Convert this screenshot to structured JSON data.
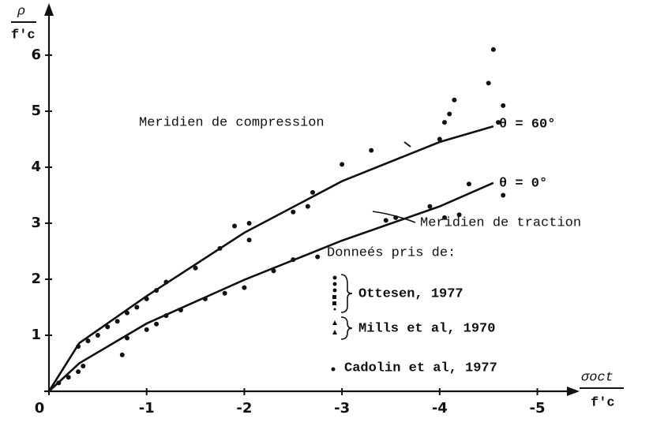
{
  "chart_data": {
    "type": "scatter",
    "y_label": {
      "num": "ρ",
      "den": "f'c"
    },
    "x_label": {
      "num": "σoct",
      "den": "f'c"
    },
    "xlim": [
      0,
      -5.4
    ],
    "ylim": [
      0,
      6.9
    ],
    "xticks": [
      0,
      -1,
      -2,
      -3,
      -4,
      -5
    ],
    "yticks": [
      1,
      2,
      3,
      4,
      5,
      6
    ],
    "color": "#111111",
    "curves": [
      {
        "name": "Meridien de compression",
        "label": "θ = 60°",
        "x": [
          0,
          -0.31,
          -1.0,
          -2.0,
          -3.0,
          -4.0,
          -4.55
        ],
        "y": [
          0,
          0.86,
          1.7,
          2.83,
          3.75,
          4.45,
          4.73
        ]
      },
      {
        "name": "Meridien de traction",
        "label": "θ = 0°",
        "x": [
          0,
          -0.31,
          -1.0,
          -2.0,
          -3.0,
          -4.0,
          -4.55
        ],
        "y": [
          0,
          0.5,
          1.21,
          1.99,
          2.69,
          3.3,
          3.72
        ]
      }
    ],
    "legend_title": "Donneés pris de:",
    "series": [
      {
        "name": "Ottesen, 1977",
        "x": [
          -0.3,
          -0.4,
          -0.5,
          -0.6,
          -0.7,
          -0.8,
          -0.9,
          -1.0,
          -1.1,
          -1.2,
          -1.5,
          -1.75,
          -1.9,
          -2.05,
          -2.05,
          -2.5,
          -2.65,
          -2.7,
          -3.0,
          -3.3,
          -4.0,
          -4.05,
          -4.1,
          -4.15,
          -4.65,
          -4.6
        ],
        "values": [
          0.8,
          0.9,
          1.0,
          1.15,
          1.25,
          1.4,
          1.5,
          1.65,
          1.8,
          1.95,
          2.2,
          2.55,
          2.95,
          3.0,
          2.7,
          3.2,
          3.3,
          3.55,
          4.05,
          4.3,
          4.5,
          4.8,
          4.95,
          5.2,
          5.1,
          4.8
        ]
      },
      {
        "name": "Mills et al, 1970",
        "x": [
          -0.1,
          -0.2,
          -0.3,
          -0.35,
          -0.75,
          -0.8,
          -1.0,
          -1.1,
          -1.2,
          -1.35,
          -1.6,
          -1.8,
          -2.0,
          -2.3,
          -2.5,
          -2.75,
          -3.45,
          -3.55,
          -3.9,
          -4.3
        ],
        "values": [
          0.15,
          0.25,
          0.35,
          0.45,
          0.65,
          0.95,
          1.1,
          1.2,
          1.35,
          1.45,
          1.65,
          1.75,
          1.85,
          2.15,
          2.35,
          2.4,
          3.05,
          3.1,
          3.3,
          3.7
        ]
      },
      {
        "name": "Cadolin et al, 1977",
        "x": [
          -4.5,
          -4.55,
          -4.65,
          -4.05,
          -4.2
        ],
        "values": [
          5.5,
          6.1,
          3.5,
          3.1,
          3.15
        ]
      }
    ]
  }
}
